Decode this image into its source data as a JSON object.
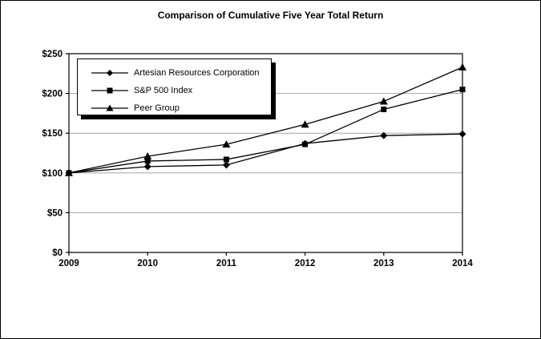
{
  "chart_data": {
    "type": "line",
    "title": "Comparison of Cumulative Five Year Total Return",
    "categories": [
      "2009",
      "2010",
      "2011",
      "2012",
      "2013",
      "2014"
    ],
    "series": [
      {
        "name": "Artesian Resources Corporation",
        "marker": "diamond",
        "values": [
          100,
          108,
          110,
          137,
          147,
          149
        ]
      },
      {
        "name": "S&P 500 Index",
        "marker": "square",
        "values": [
          100,
          115,
          117,
          136,
          180,
          205
        ]
      },
      {
        "name": "Peer Group",
        "marker": "triangle",
        "values": [
          100,
          121,
          136,
          161,
          190,
          233
        ]
      }
    ],
    "x_axis": {
      "tick_labels": [
        "2009",
        "2010",
        "2011",
        "2012",
        "2013",
        "2014"
      ]
    },
    "y_axis": {
      "tick_labels": [
        "$0",
        "$50",
        "$100",
        "$150",
        "$200",
        "$250"
      ],
      "tick_values": [
        0,
        50,
        100,
        150,
        200,
        250
      ],
      "min": 0,
      "max": 250
    },
    "grid": "horizontal",
    "legend": {
      "position": "top-left-inside",
      "entries": [
        "Artesian Resources Corporation",
        "S&P 500 Index",
        "Peer Group"
      ]
    },
    "colors": {
      "series": "#000000",
      "grid": "#a6a6a6",
      "axis": "#000000",
      "background": "#ffffff",
      "legend_border": "#000000",
      "legend_shadow": "#000000"
    }
  }
}
